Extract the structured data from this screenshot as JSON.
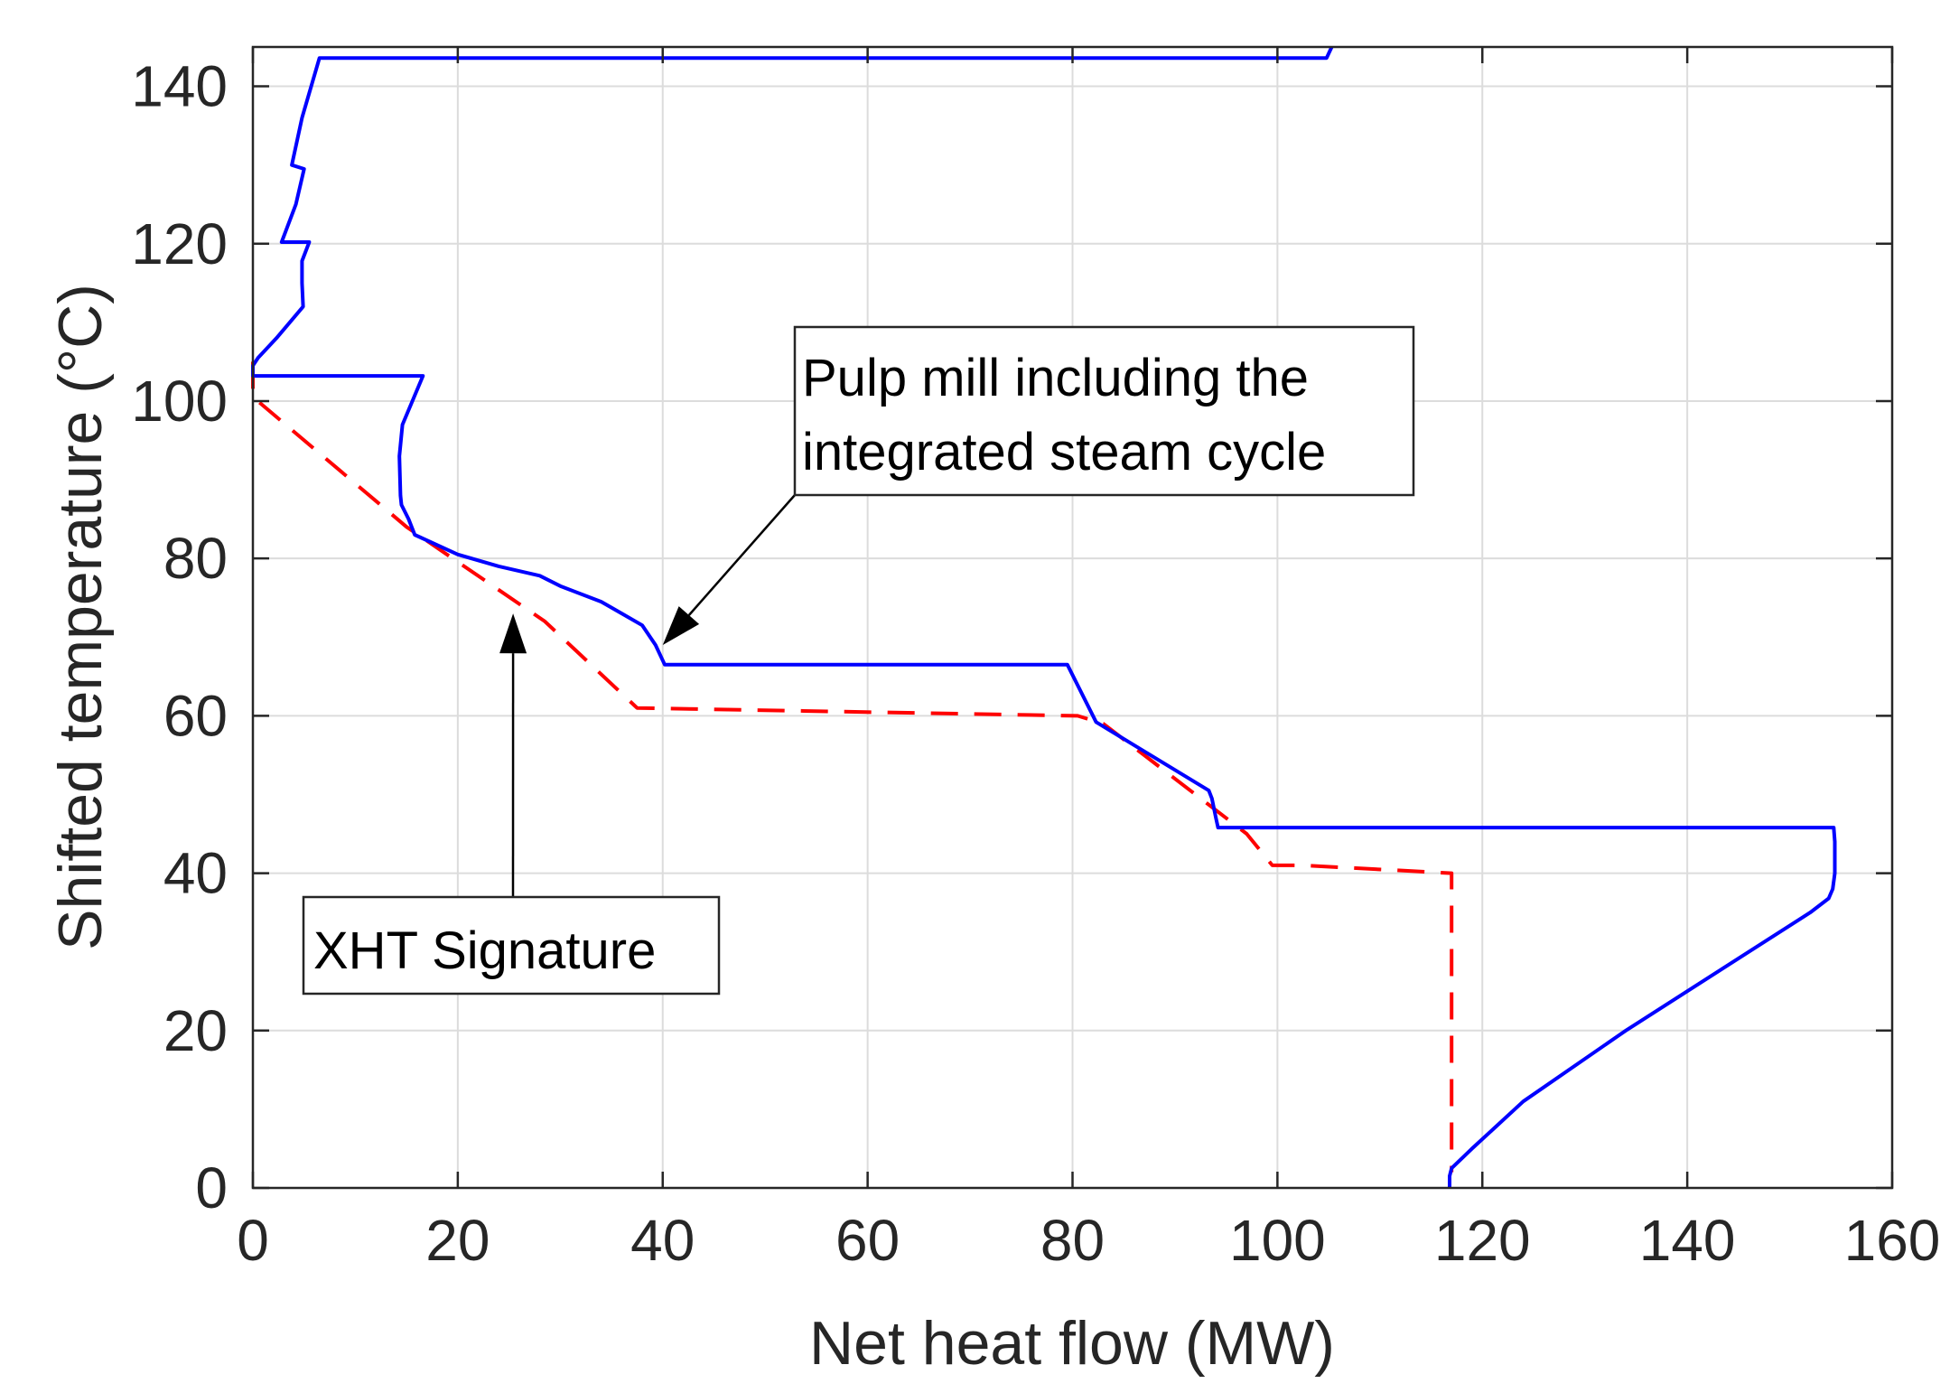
{
  "chart_data": {
    "type": "line",
    "title": "",
    "xlabel": "Net heat flow (MW)",
    "ylabel": "Shifted temperature (°C)",
    "xlim": [
      0,
      160
    ],
    "ylim": [
      0,
      145
    ],
    "x_ticks": [
      0,
      20,
      40,
      60,
      80,
      100,
      120,
      140,
      160
    ],
    "y_ticks": [
      0,
      20,
      40,
      60,
      80,
      100,
      120,
      140
    ],
    "grid": true,
    "legend": "none",
    "series": [
      {
        "name": "Pulp mill including the integrated steam cycle",
        "color": "#0000ff",
        "style": "solid",
        "points": [
          [
            105.3,
            145
          ],
          [
            104.8,
            143.6
          ],
          [
            6.5,
            143.6
          ],
          [
            4.8,
            136
          ],
          [
            3.8,
            130
          ],
          [
            5.0,
            129.5
          ],
          [
            4.2,
            125
          ],
          [
            2.8,
            120.2
          ],
          [
            5.5,
            120.2
          ],
          [
            4.8,
            117.8
          ],
          [
            4.8,
            115
          ],
          [
            4.9,
            112
          ],
          [
            2.3,
            108
          ],
          [
            0.5,
            105.5
          ],
          [
            0,
            104.5
          ],
          [
            0,
            103.2
          ],
          [
            16.6,
            103.2
          ],
          [
            14.6,
            97
          ],
          [
            14.3,
            93
          ],
          [
            14.4,
            88
          ],
          [
            14.5,
            86.8
          ],
          [
            15.2,
            85
          ],
          [
            15.8,
            83
          ],
          [
            20,
            80.5
          ],
          [
            24,
            79
          ],
          [
            28,
            77.8
          ],
          [
            30,
            76.5
          ],
          [
            34,
            74.5
          ],
          [
            36,
            73
          ],
          [
            38,
            71.5
          ],
          [
            39.3,
            69
          ],
          [
            40.2,
            66.5
          ],
          [
            79.5,
            66.5
          ],
          [
            82.3,
            59.2
          ],
          [
            93.3,
            50.5
          ],
          [
            93.6,
            49.5
          ],
          [
            94.0,
            47
          ],
          [
            94.2,
            45.8
          ],
          [
            154.3,
            45.8
          ],
          [
            154.4,
            44
          ],
          [
            154.4,
            40
          ],
          [
            154.2,
            38
          ],
          [
            153.8,
            36.8
          ],
          [
            152.0,
            35
          ],
          [
            134.0,
            20
          ],
          [
            124.0,
            11
          ],
          [
            119.0,
            5
          ],
          [
            117.0,
            2.5
          ],
          [
            116.8,
            1.5
          ],
          [
            116.8,
            0
          ]
        ]
      },
      {
        "name": "XHT Signature",
        "color": "#ff0000",
        "style": "dashed",
        "points": [
          [
            0,
            105
          ],
          [
            0,
            101
          ],
          [
            0.2,
            100.3
          ],
          [
            15,
            84
          ],
          [
            28.5,
            72
          ],
          [
            37.5,
            61
          ],
          [
            80.5,
            60
          ],
          [
            83,
            59
          ],
          [
            97,
            45
          ],
          [
            99.5,
            41
          ],
          [
            102.5,
            41
          ],
          [
            117,
            40
          ],
          [
            117,
            2
          ]
        ]
      }
    ],
    "annotations": [
      {
        "id": "pulp",
        "lines": [
          "Pulp mill including the",
          "integrated steam cycle"
        ],
        "arrow_tip": [
          40,
          69
        ]
      },
      {
        "id": "xht",
        "lines": [
          "XHT Signature"
        ],
        "arrow_tip": [
          25.4,
          73
        ]
      }
    ]
  }
}
